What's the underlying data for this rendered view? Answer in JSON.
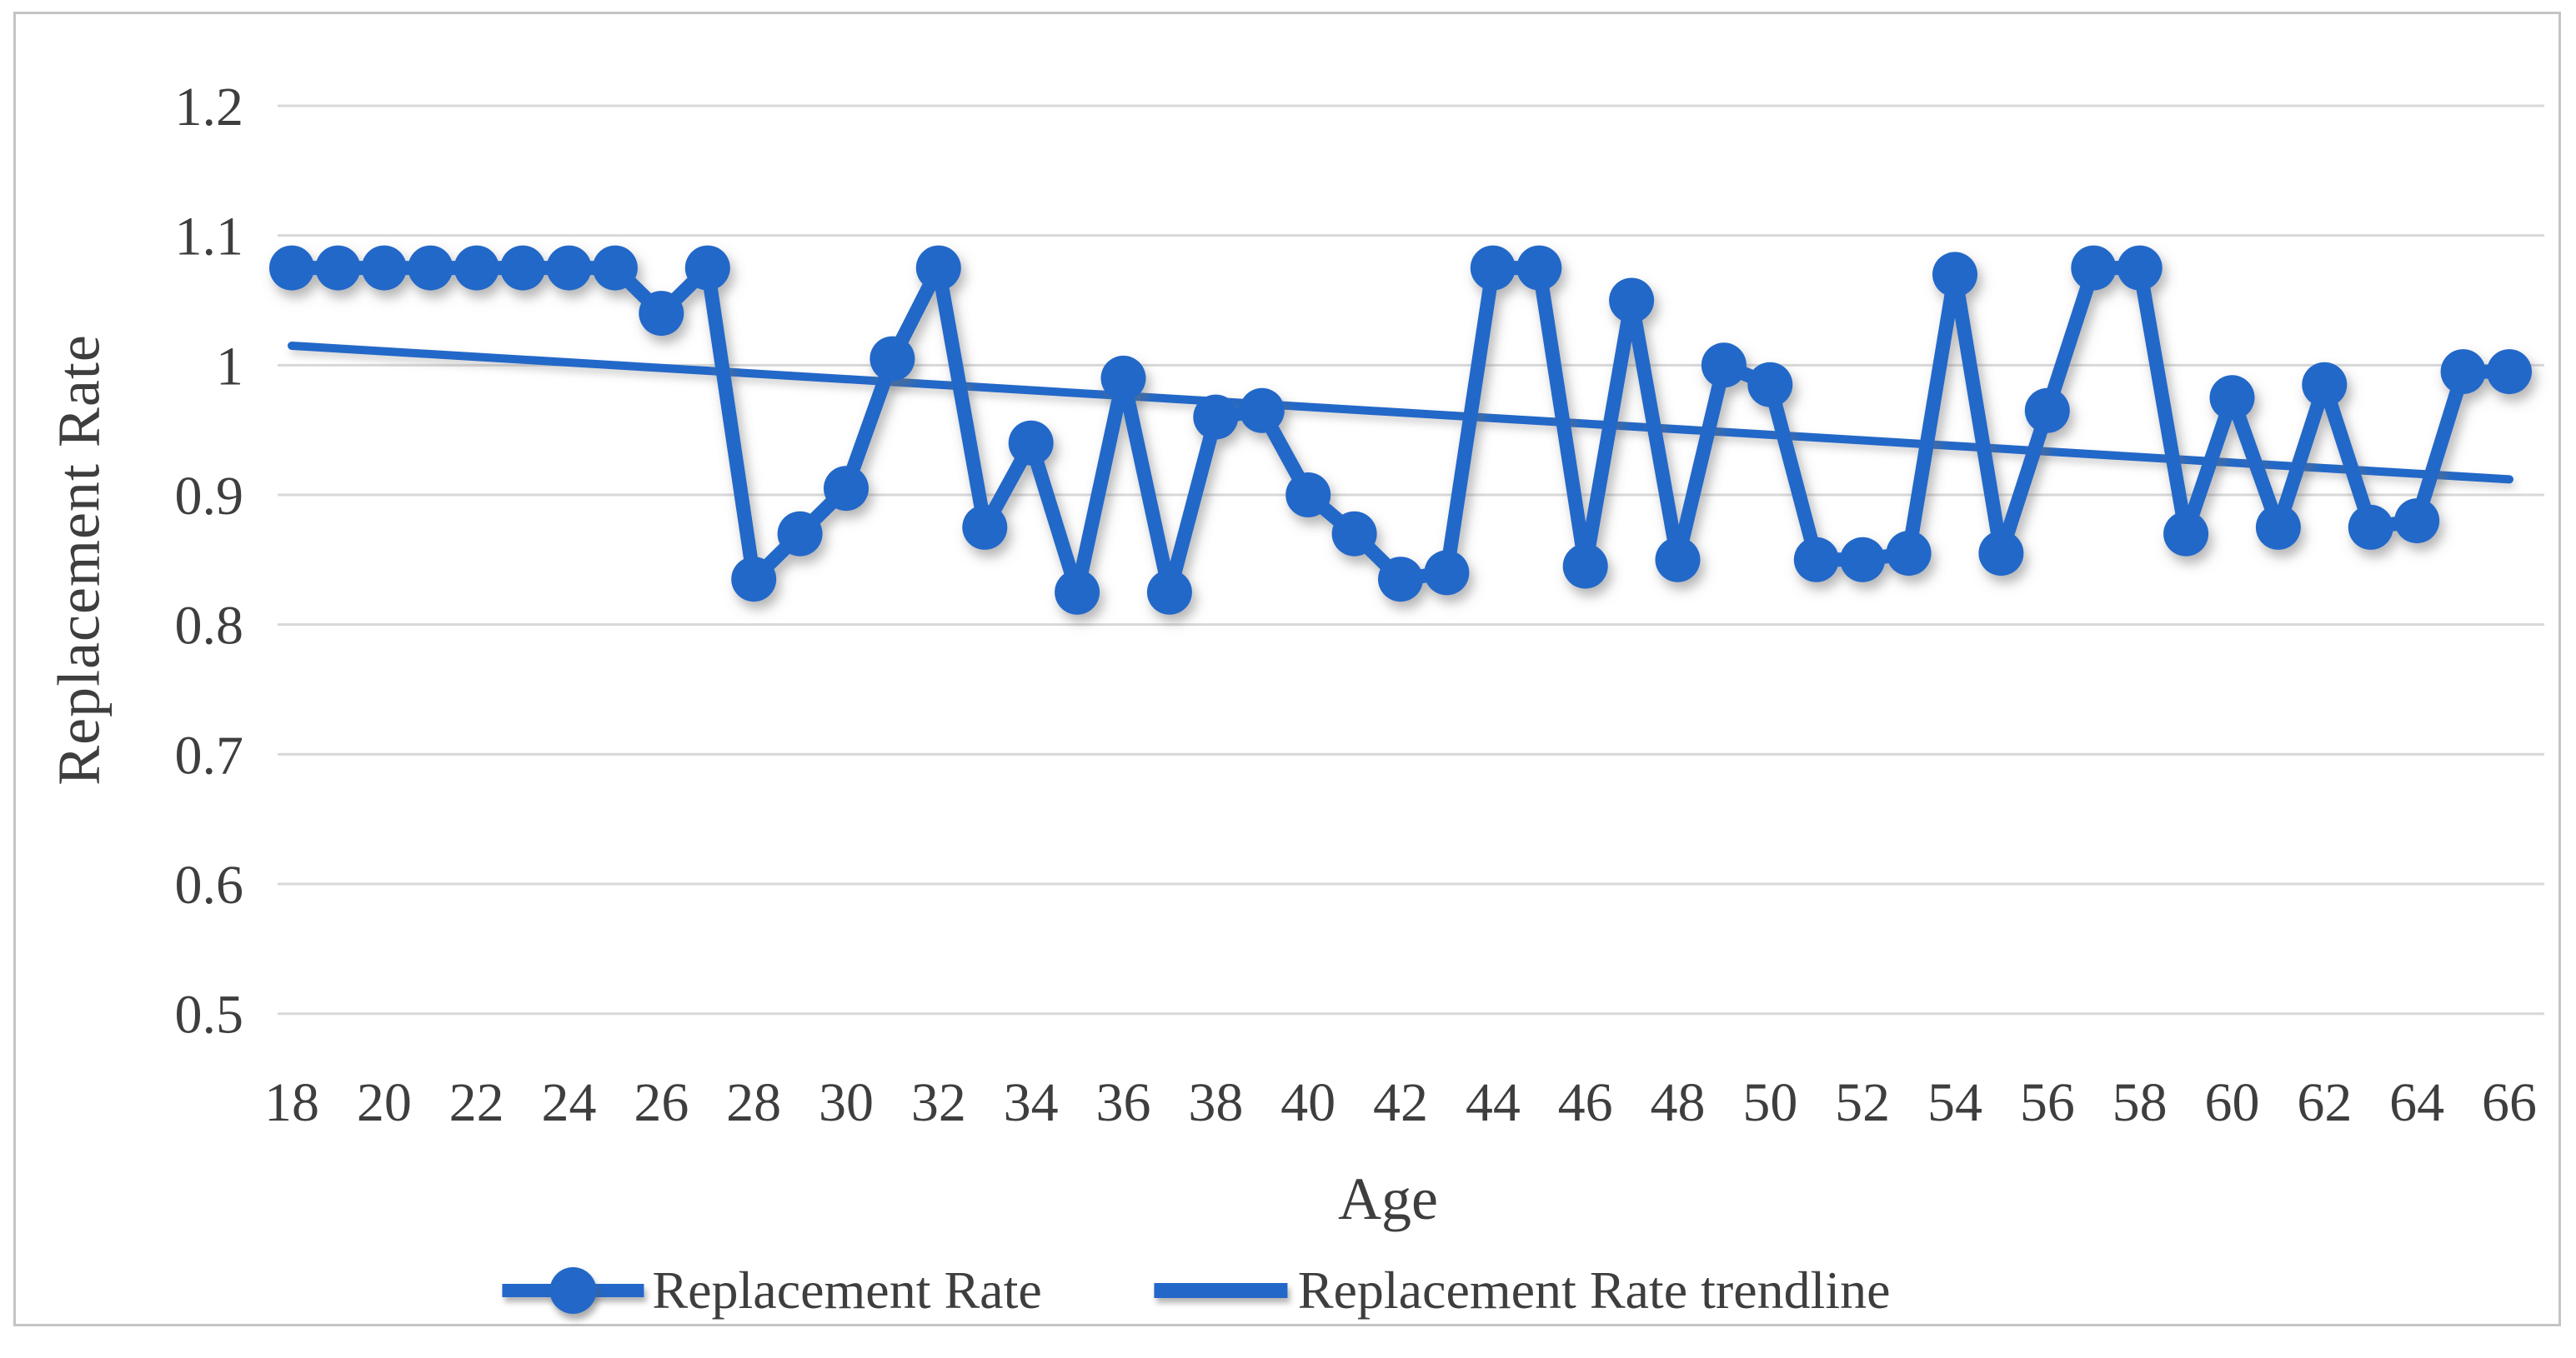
{
  "colors": {
    "series_blue": "#2368c8",
    "gridline": "#d8d8d8",
    "text": "#3e3e3e",
    "frame_border": "#c4c4c4",
    "background": "#ffffff"
  },
  "chart_data": {
    "type": "line",
    "title": "",
    "xlabel": "Age",
    "ylabel": "Replacement Rate",
    "grid": true,
    "legend_position": "bottom",
    "ylim": [
      0.5,
      1.2
    ],
    "xlim": [
      18,
      66
    ],
    "yticks": [
      1.2,
      1.1,
      1,
      0.9,
      0.8,
      0.7,
      0.6,
      0.5
    ],
    "ytick_labels": [
      "1.2",
      "1.1",
      "1",
      "0.9",
      "0.8",
      "0.7",
      "0.6",
      "0.5"
    ],
    "xticks": [
      18,
      20,
      22,
      24,
      26,
      28,
      30,
      32,
      34,
      36,
      38,
      40,
      42,
      44,
      46,
      48,
      50,
      52,
      54,
      56,
      58,
      60,
      62,
      64,
      66
    ],
    "x": [
      18,
      19,
      20,
      21,
      22,
      23,
      24,
      25,
      26,
      27,
      28,
      29,
      30,
      31,
      32,
      33,
      34,
      35,
      36,
      37,
      38,
      39,
      40,
      41,
      42,
      43,
      44,
      45,
      46,
      47,
      48,
      49,
      50,
      51,
      52,
      53,
      54,
      55,
      56,
      57,
      58,
      59,
      60,
      61,
      62,
      63,
      64,
      65,
      66
    ],
    "series": [
      {
        "name": "Replacement Rate",
        "marker": "circle",
        "values": [
          1.075,
          1.075,
          1.075,
          1.075,
          1.075,
          1.075,
          1.075,
          1.075,
          1.04,
          1.075,
          0.835,
          0.87,
          0.905,
          1.005,
          1.075,
          0.875,
          0.94,
          0.825,
          0.99,
          0.825,
          0.96,
          0.965,
          0.9,
          0.87,
          0.835,
          0.84,
          1.075,
          1.075,
          0.845,
          1.05,
          0.85,
          1.0,
          0.985,
          0.85,
          0.85,
          0.855,
          1.07,
          0.855,
          0.965,
          1.075,
          1.075,
          0.87,
          0.975,
          0.875,
          0.985,
          0.875,
          0.88,
          0.995,
          0.995
        ]
      },
      {
        "name": "Replacement Rate trendline",
        "marker": "none",
        "type": "linear_trendline",
        "start_value": 1.015,
        "end_value": 0.912
      }
    ]
  }
}
